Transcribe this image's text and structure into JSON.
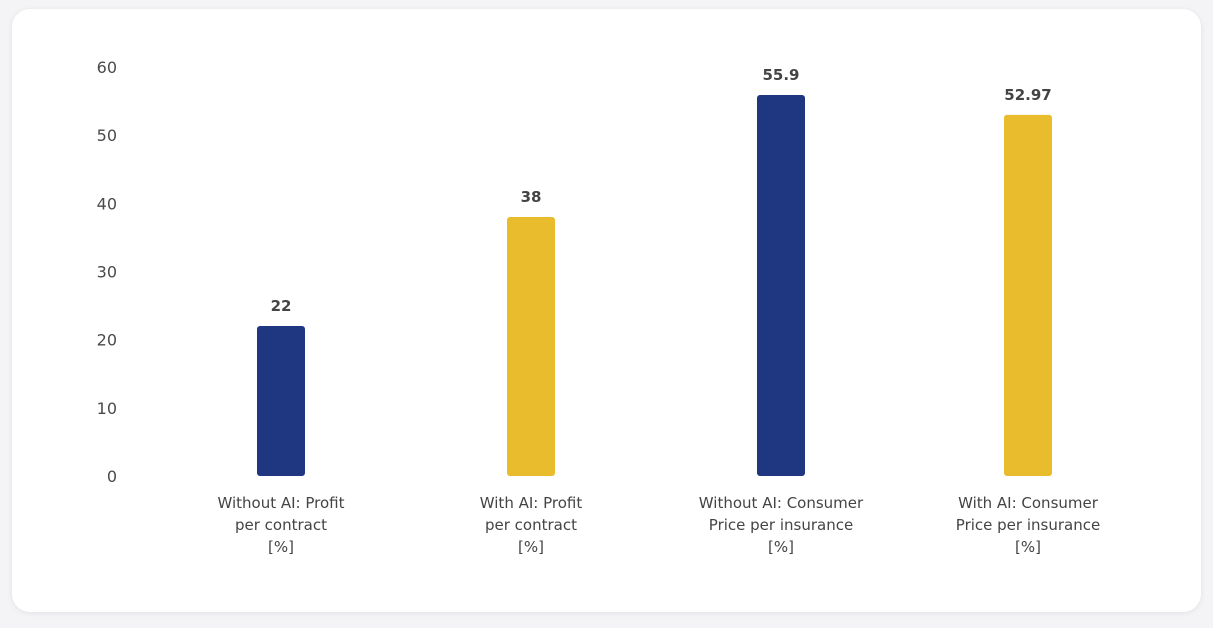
{
  "chart_data": {
    "type": "bar",
    "title": "",
    "xlabel": "",
    "ylabel": "",
    "ylim": [
      0,
      60
    ],
    "yticks": [
      0,
      10,
      20,
      30,
      40,
      50,
      60
    ],
    "grid": false,
    "legend": "none",
    "categories": [
      [
        "Without AI: Profit",
        "per contract",
        "[%]"
      ],
      [
        "With AI: Profit",
        "per contract",
        "[%]"
      ],
      [
        "Without AI: Consumer",
        "Price per insurance",
        "[%]"
      ],
      [
        "With AI: Consumer",
        "Price per insurance",
        "[%]"
      ]
    ],
    "values": [
      22,
      38,
      55.9,
      52.97
    ],
    "value_labels": [
      "22",
      "38",
      "55.9",
      "52.97"
    ],
    "colors": [
      "#1f3780",
      "#e8bc2c",
      "#1f3780",
      "#e8bc2c"
    ]
  }
}
